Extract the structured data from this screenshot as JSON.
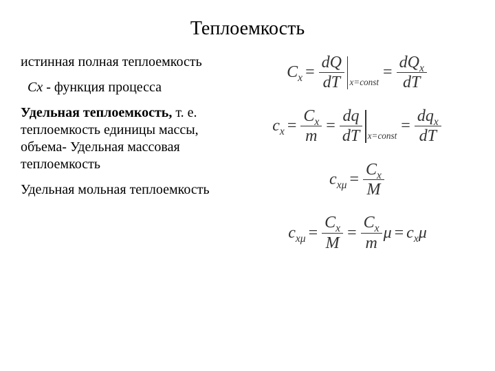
{
  "title": "Теплоемкость",
  "left": {
    "p1": "истинная полная теплоемкость",
    "p2_var": "Cx",
    "p2_rest": " - функция процесса",
    "p3_bold": "Удельная теплоемкость,",
    "p3_rest": " т. е. теплоемкость единицы массы, объема- Удельная массовая теплоемкость",
    "p4": "Удельная мольная теплоемкость"
  },
  "eq": {
    "C": "C",
    "c": "c",
    "x": "x",
    "xmu": "xμ",
    "eq": "=",
    "dQ": "dQ",
    "dT": "dT",
    "dQx": "dQ",
    "dq": "dq",
    "dqx": "dq",
    "m": "m",
    "M": "M",
    "mu": "μ",
    "cond": "x=const"
  },
  "style": {
    "bg": "#ffffff",
    "text": "#000000",
    "eq_color": "#333333",
    "title_size": 28,
    "body_size": 20,
    "eq_size": 24
  }
}
